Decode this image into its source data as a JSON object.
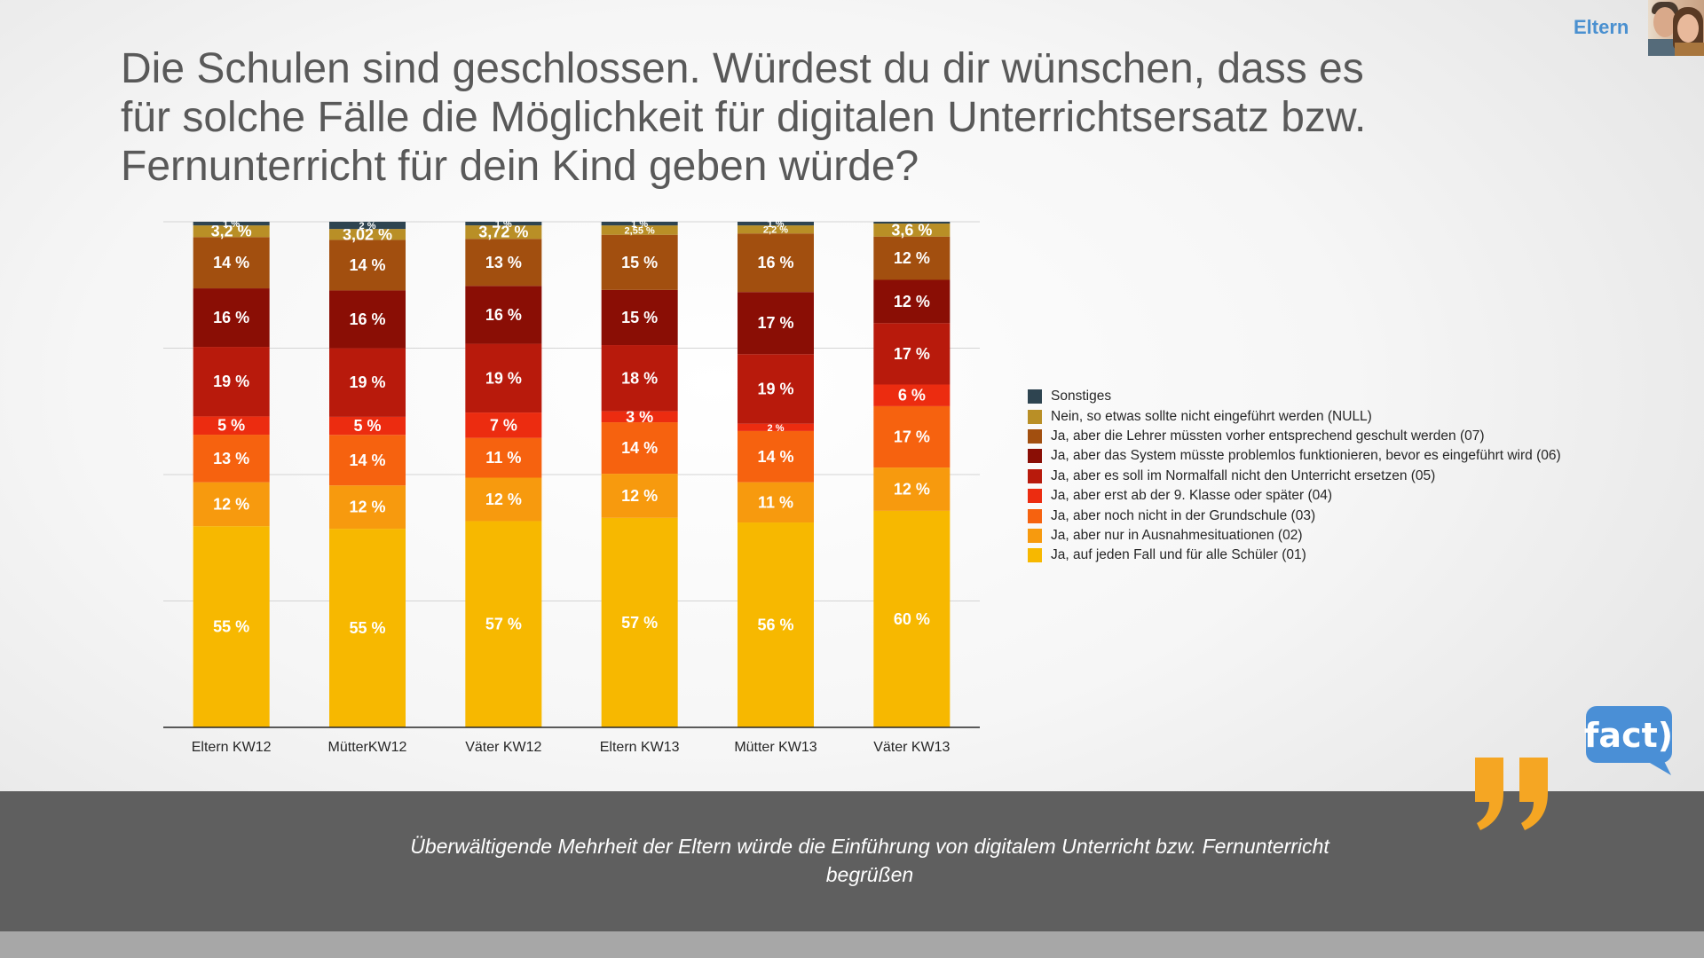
{
  "header": {
    "section_label": "Eltern",
    "title_lines": [
      "Die Schulen sind geschlossen. Würdest du dir wünschen, dass es",
      "für solche Fälle die Möglichkeit für digitalen Unterrichtsersatz bzw.",
      "Fernunterricht für dein Kind geben würde?"
    ]
  },
  "quote": {
    "line1": "Überwältigende Mehrheit der Eltern würde die Einführung von digitalem Unterricht bzw. Fernunterricht",
    "line2": "begrüßen"
  },
  "logo": {
    "text": "fact)"
  },
  "chart_data": {
    "type": "bar",
    "stacked": true,
    "normalized": true,
    "categories": [
      "Eltern KW12",
      "MütterKW12",
      "Väter KW12",
      "Eltern KW13",
      "Mütter KW13",
      "Väter KW13"
    ],
    "ylim": [
      0,
      100
    ],
    "grid": true,
    "legend_position": "right",
    "series": [
      {
        "name": "Ja, auf jeden Fall und für alle Schüler (01)",
        "color": "#F7B800",
        "values": [
          55,
          55,
          57,
          57,
          56,
          60
        ],
        "labels": [
          "55 %",
          "55 %",
          "57 %",
          "57 %",
          "56 %",
          "60 %"
        ]
      },
      {
        "name": "Ja, aber nur in Ausnahmesituationen (02)",
        "color": "#F79A0E",
        "values": [
          12,
          12,
          12,
          12,
          11,
          12
        ],
        "labels": [
          "12 %",
          "12 %",
          "12 %",
          "12 %",
          "11 %",
          "12 %"
        ]
      },
      {
        "name": "Ja, aber noch nicht in der Grundschule (03)",
        "color": "#F6620F",
        "values": [
          13,
          14,
          11,
          14,
          14,
          17
        ],
        "labels": [
          "13 %",
          "14 %",
          "11 %",
          "14 %",
          "14 %",
          "17 %"
        ]
      },
      {
        "name": "Ja, aber erst ab der 9. Klasse oder später (04)",
        "color": "#EC2C10",
        "values": [
          5,
          5,
          7,
          3,
          2,
          6
        ],
        "labels": [
          "5 %",
          "5 %",
          "7 %",
          "3 %",
          "2 %",
          "6 %"
        ]
      },
      {
        "name": "Ja, aber es soll im Normalfall nicht den Unterricht ersetzen (05)",
        "color": "#B81A0C",
        "values": [
          19,
          19,
          19,
          18,
          19,
          17
        ],
        "labels": [
          "19 %",
          "19 %",
          "19 %",
          "18 %",
          "19 %",
          "17 %"
        ]
      },
      {
        "name": "Ja, aber das System müsste problemlos funktionieren, bevor es eingeführt wird (06)",
        "color": "#8A0E05",
        "values": [
          16,
          16,
          16,
          15,
          17,
          12
        ],
        "labels": [
          "16 %",
          "16 %",
          "16 %",
          "15 %",
          "17 %",
          "12 %"
        ]
      },
      {
        "name": "Ja, aber die Lehrer müssten vorher entsprechend geschult werden (07)",
        "color": "#A24F0F",
        "values": [
          14,
          14,
          13,
          15,
          16,
          12
        ],
        "labels": [
          "14 %",
          "14 %",
          "13 %",
          "15 %",
          "16 %",
          "12 %"
        ]
      },
      {
        "name": "Nein, so etwas sollte nicht eingeführt werden (NULL)",
        "color": "#B98F26",
        "values": [
          3.2,
          3.02,
          3.72,
          2.55,
          2.2,
          3.6
        ],
        "labels": [
          "3,2 %",
          "3,02 %",
          "3,72 %",
          "2,55 %",
          "2,2 %",
          "3,6 %"
        ]
      },
      {
        "name": "Sonstiges",
        "color": "#2E4450",
        "values": [
          1,
          2,
          1,
          1,
          1,
          0.5
        ],
        "labels": [
          "1 %",
          "2 %",
          "1 %",
          "1 %",
          "1 %",
          ""
        ]
      }
    ]
  }
}
